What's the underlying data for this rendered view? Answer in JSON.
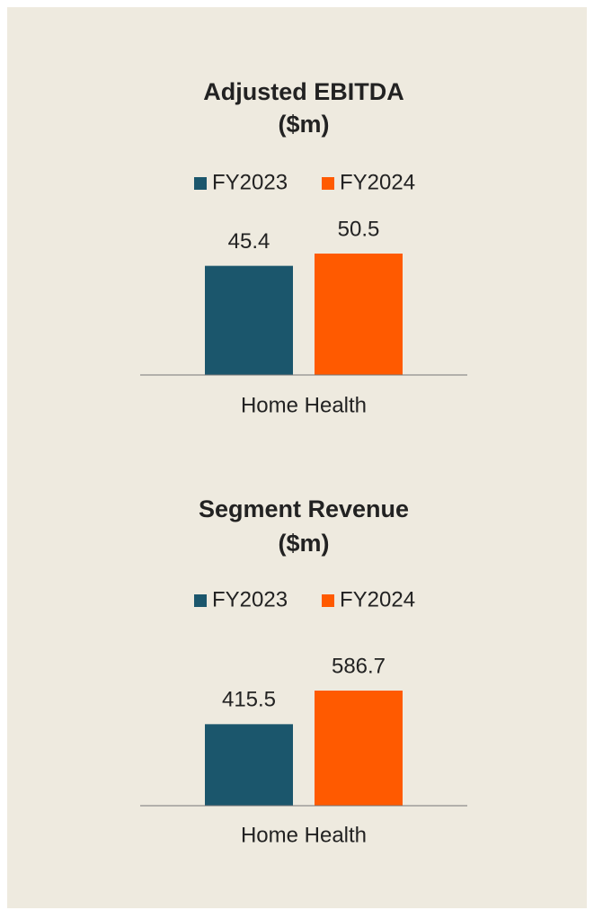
{
  "chart_data": [
    {
      "type": "bar",
      "title": [
        "Adjusted EBITDA",
        "($m)"
      ],
      "categories": [
        "Home Health"
      ],
      "series": [
        {
          "name": "FY2023",
          "color": "#1b566c",
          "values": [
            45.4
          ]
        },
        {
          "name": "FY2024",
          "color": "#ff5a00",
          "values": [
            50.5
          ]
        }
      ]
    },
    {
      "type": "bar",
      "title": [
        "Segment Revenue",
        "($m)"
      ],
      "categories": [
        "Home Health"
      ],
      "series": [
        {
          "name": "FY2023",
          "color": "#1b566c",
          "values": [
            415.5
          ]
        },
        {
          "name": "FY2024",
          "color": "#ff5a00",
          "values": [
            586.7
          ]
        }
      ]
    }
  ]
}
